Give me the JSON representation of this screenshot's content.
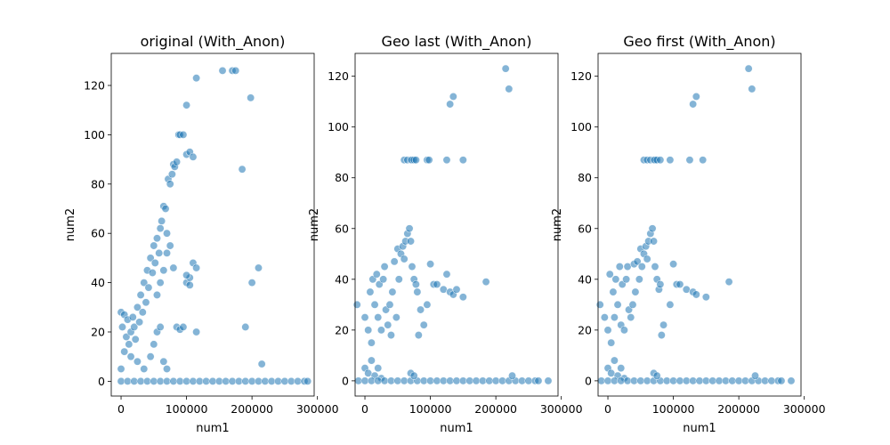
{
  "chart_data": [
    {
      "type": "scatter",
      "title": "original (With_Anon)",
      "xlabel": "num1",
      "ylabel": "num2",
      "xlim": [
        -15000,
        295000
      ],
      "ylim": [
        -6,
        133
      ],
      "xticks": [
        0,
        100000,
        200000,
        300000
      ],
      "xtick_labels": [
        "0",
        "100000",
        "200000",
        "300000"
      ],
      "yticks": [
        0,
        20,
        40,
        60,
        80,
        100,
        120
      ],
      "ytick_labels": [
        "0",
        "20",
        "40",
        "60",
        "80",
        "100",
        "120"
      ],
      "color": "#1f77b4",
      "alpha": 0.55,
      "points": [
        [
          0,
          28
        ],
        [
          2000,
          22
        ],
        [
          5000,
          27
        ],
        [
          8000,
          18
        ],
        [
          10000,
          25
        ],
        [
          12000,
          15
        ],
        [
          15000,
          20
        ],
        [
          18000,
          26
        ],
        [
          20000,
          22
        ],
        [
          22000,
          17
        ],
        [
          25000,
          30
        ],
        [
          28000,
          24
        ],
        [
          30000,
          35
        ],
        [
          33000,
          28
        ],
        [
          35000,
          40
        ],
        [
          38000,
          32
        ],
        [
          40000,
          45
        ],
        [
          42000,
          38
        ],
        [
          45000,
          50
        ],
        [
          48000,
          44
        ],
        [
          50000,
          55
        ],
        [
          52000,
          48
        ],
        [
          55000,
          58
        ],
        [
          58000,
          52
        ],
        [
          60000,
          62
        ],
        [
          62000,
          65
        ],
        [
          65000,
          71
        ],
        [
          68000,
          70
        ],
        [
          70000,
          60
        ],
        [
          72000,
          82
        ],
        [
          75000,
          80
        ],
        [
          78000,
          84
        ],
        [
          80000,
          88
        ],
        [
          82000,
          87
        ],
        [
          85000,
          89
        ],
        [
          88000,
          100
        ],
        [
          90000,
          100
        ],
        [
          95000,
          100
        ],
        [
          100000,
          92
        ],
        [
          100000,
          112
        ],
        [
          105000,
          93
        ],
        [
          110000,
          91
        ],
        [
          115000,
          123
        ],
        [
          155000,
          126
        ],
        [
          170000,
          126
        ],
        [
          175000,
          126
        ],
        [
          185000,
          86
        ],
        [
          198000,
          115
        ],
        [
          55000,
          35
        ],
        [
          60000,
          40
        ],
        [
          65000,
          45
        ],
        [
          70000,
          52
        ],
        [
          75000,
          55
        ],
        [
          80000,
          46
        ],
        [
          85000,
          22
        ],
        [
          90000,
          21
        ],
        [
          95000,
          22
        ],
        [
          100000,
          40
        ],
        [
          105000,
          42
        ],
        [
          110000,
          48
        ],
        [
          115000,
          46
        ],
        [
          100000,
          43
        ],
        [
          105000,
          39
        ],
        [
          115000,
          20
        ],
        [
          190000,
          22
        ],
        [
          200000,
          40
        ],
        [
          210000,
          46
        ],
        [
          215000,
          7
        ],
        [
          45000,
          10
        ],
        [
          50000,
          15
        ],
        [
          55000,
          20
        ],
        [
          60000,
          22
        ],
        [
          65000,
          8
        ],
        [
          70000,
          5
        ],
        [
          35000,
          5
        ],
        [
          25000,
          8
        ],
        [
          15000,
          10
        ],
        [
          5000,
          12
        ],
        [
          0,
          5
        ],
        [
          0,
          0
        ],
        [
          10000,
          0
        ],
        [
          20000,
          0
        ],
        [
          30000,
          0
        ],
        [
          40000,
          0
        ],
        [
          50000,
          0
        ],
        [
          60000,
          0
        ],
        [
          70000,
          0
        ],
        [
          80000,
          0
        ],
        [
          90000,
          0
        ],
        [
          100000,
          0
        ],
        [
          110000,
          0
        ],
        [
          120000,
          0
        ],
        [
          130000,
          0
        ],
        [
          140000,
          0
        ],
        [
          150000,
          0
        ],
        [
          160000,
          0
        ],
        [
          170000,
          0
        ],
        [
          180000,
          0
        ],
        [
          190000,
          0
        ],
        [
          200000,
          0
        ],
        [
          210000,
          0
        ],
        [
          220000,
          0
        ],
        [
          230000,
          0
        ],
        [
          240000,
          0
        ],
        [
          250000,
          0
        ],
        [
          260000,
          0
        ],
        [
          270000,
          0
        ],
        [
          280000,
          0
        ],
        [
          285000,
          0
        ]
      ]
    },
    {
      "type": "scatter",
      "title": "Geo last (With_Anon)",
      "xlabel": "num1",
      "ylabel": "num2",
      "xlim": [
        -15000,
        295000
      ],
      "ylim": [
        -6,
        129
      ],
      "xticks": [
        0,
        100000,
        200000,
        300000
      ],
      "xtick_labels": [
        "0",
        "100000",
        "200000",
        "300000"
      ],
      "yticks": [
        0,
        20,
        40,
        60,
        80,
        100,
        120
      ],
      "ytick_labels": [
        "0",
        "20",
        "40",
        "60",
        "80",
        "100",
        "120"
      ],
      "color": "#1f77b4",
      "alpha": 0.55,
      "points": [
        [
          -12000,
          30
        ],
        [
          0,
          25
        ],
        [
          5000,
          20
        ],
        [
          8000,
          35
        ],
        [
          10000,
          15
        ],
        [
          12000,
          40
        ],
        [
          15000,
          30
        ],
        [
          18000,
          42
        ],
        [
          20000,
          25
        ],
        [
          22000,
          38
        ],
        [
          25000,
          20
        ],
        [
          28000,
          40
        ],
        [
          30000,
          45
        ],
        [
          32000,
          28
        ],
        [
          35000,
          22
        ],
        [
          38000,
          30
        ],
        [
          40000,
          18
        ],
        [
          42000,
          35
        ],
        [
          45000,
          47
        ],
        [
          48000,
          25
        ],
        [
          50000,
          52
        ],
        [
          52000,
          40
        ],
        [
          55000,
          50
        ],
        [
          58000,
          53
        ],
        [
          60000,
          48
        ],
        [
          62000,
          55
        ],
        [
          65000,
          58
        ],
        [
          68000,
          60
        ],
        [
          70000,
          55
        ],
        [
          72000,
          45
        ],
        [
          75000,
          40
        ],
        [
          78000,
          38
        ],
        [
          80000,
          35
        ],
        [
          82000,
          18
        ],
        [
          85000,
          28
        ],
        [
          90000,
          22
        ],
        [
          95000,
          30
        ],
        [
          100000,
          46
        ],
        [
          105000,
          38
        ],
        [
          110000,
          38
        ],
        [
          120000,
          36
        ],
        [
          125000,
          42
        ],
        [
          130000,
          35
        ],
        [
          135000,
          34
        ],
        [
          140000,
          36
        ],
        [
          150000,
          33
        ],
        [
          185000,
          39
        ],
        [
          60000,
          87
        ],
        [
          65000,
          87
        ],
        [
          70000,
          87
        ],
        [
          72000,
          87
        ],
        [
          75000,
          87
        ],
        [
          78000,
          87
        ],
        [
          95000,
          87
        ],
        [
          98000,
          87
        ],
        [
          125000,
          87
        ],
        [
          150000,
          87
        ],
        [
          130000,
          109
        ],
        [
          135000,
          112
        ],
        [
          215000,
          123
        ],
        [
          220000,
          115
        ],
        [
          0,
          5
        ],
        [
          5000,
          3
        ],
        [
          10000,
          8
        ],
        [
          15000,
          2
        ],
        [
          20000,
          5
        ],
        [
          25000,
          1
        ],
        [
          -10000,
          0
        ],
        [
          0,
          0
        ],
        [
          10000,
          0
        ],
        [
          20000,
          0
        ],
        [
          30000,
          0
        ],
        [
          40000,
          0
        ],
        [
          50000,
          0
        ],
        [
          60000,
          0
        ],
        [
          70000,
          0
        ],
        [
          80000,
          0
        ],
        [
          90000,
          0
        ],
        [
          100000,
          0
        ],
        [
          110000,
          0
        ],
        [
          120000,
          0
        ],
        [
          130000,
          0
        ],
        [
          140000,
          0
        ],
        [
          150000,
          0
        ],
        [
          160000,
          0
        ],
        [
          170000,
          0
        ],
        [
          180000,
          0
        ],
        [
          190000,
          0
        ],
        [
          200000,
          0
        ],
        [
          210000,
          0
        ],
        [
          220000,
          0
        ],
        [
          230000,
          0
        ],
        [
          240000,
          0
        ],
        [
          250000,
          0
        ],
        [
          260000,
          0
        ],
        [
          265000,
          0
        ],
        [
          280000,
          0
        ],
        [
          70000,
          3
        ],
        [
          75000,
          2
        ],
        [
          225000,
          2
        ]
      ]
    },
    {
      "type": "scatter",
      "title": "Geo first (With_Anon)",
      "xlabel": "num1",
      "ylabel": "num2",
      "xlim": [
        -15000,
        295000
      ],
      "ylim": [
        -6,
        129
      ],
      "xticks": [
        0,
        100000,
        200000,
        300000
      ],
      "xtick_labels": [
        "0",
        "100000",
        "200000",
        "300000"
      ],
      "yticks": [
        0,
        20,
        40,
        60,
        80,
        100,
        120
      ],
      "ytick_labels": [
        "0",
        "20",
        "40",
        "60",
        "80",
        "100",
        "120"
      ],
      "color": "#1f77b4",
      "alpha": 0.55,
      "points": [
        [
          -12000,
          30
        ],
        [
          -5000,
          25
        ],
        [
          0,
          20
        ],
        [
          3000,
          42
        ],
        [
          5000,
          15
        ],
        [
          8000,
          35
        ],
        [
          10000,
          25
        ],
        [
          12000,
          40
        ],
        [
          15000,
          30
        ],
        [
          18000,
          45
        ],
        [
          20000,
          22
        ],
        [
          22000,
          38
        ],
        [
          25000,
          20
        ],
        [
          28000,
          40
        ],
        [
          30000,
          45
        ],
        [
          32000,
          28
        ],
        [
          35000,
          25
        ],
        [
          38000,
          30
        ],
        [
          40000,
          46
        ],
        [
          42000,
          35
        ],
        [
          45000,
          47
        ],
        [
          48000,
          40
        ],
        [
          50000,
          52
        ],
        [
          52000,
          45
        ],
        [
          55000,
          50
        ],
        [
          58000,
          53
        ],
        [
          60000,
          48
        ],
        [
          62000,
          55
        ],
        [
          65000,
          58
        ],
        [
          68000,
          60
        ],
        [
          70000,
          55
        ],
        [
          72000,
          45
        ],
        [
          75000,
          40
        ],
        [
          78000,
          36
        ],
        [
          80000,
          38
        ],
        [
          82000,
          18
        ],
        [
          85000,
          22
        ],
        [
          95000,
          30
        ],
        [
          100000,
          46
        ],
        [
          105000,
          38
        ],
        [
          110000,
          38
        ],
        [
          120000,
          36
        ],
        [
          130000,
          35
        ],
        [
          135000,
          34
        ],
        [
          150000,
          33
        ],
        [
          185000,
          39
        ],
        [
          55000,
          87
        ],
        [
          60000,
          87
        ],
        [
          65000,
          87
        ],
        [
          70000,
          87
        ],
        [
          72000,
          87
        ],
        [
          75000,
          87
        ],
        [
          80000,
          87
        ],
        [
          95000,
          87
        ],
        [
          125000,
          87
        ],
        [
          145000,
          87
        ],
        [
          130000,
          109
        ],
        [
          135000,
          112
        ],
        [
          215000,
          123
        ],
        [
          220000,
          115
        ],
        [
          0,
          5
        ],
        [
          5000,
          3
        ],
        [
          10000,
          8
        ],
        [
          15000,
          2
        ],
        [
          20000,
          5
        ],
        [
          25000,
          1
        ],
        [
          -10000,
          0
        ],
        [
          0,
          0
        ],
        [
          10000,
          0
        ],
        [
          20000,
          0
        ],
        [
          30000,
          0
        ],
        [
          40000,
          0
        ],
        [
          50000,
          0
        ],
        [
          60000,
          0
        ],
        [
          70000,
          0
        ],
        [
          80000,
          0
        ],
        [
          90000,
          0
        ],
        [
          100000,
          0
        ],
        [
          110000,
          0
        ],
        [
          120000,
          0
        ],
        [
          130000,
          0
        ],
        [
          140000,
          0
        ],
        [
          150000,
          0
        ],
        [
          160000,
          0
        ],
        [
          170000,
          0
        ],
        [
          180000,
          0
        ],
        [
          190000,
          0
        ],
        [
          200000,
          0
        ],
        [
          210000,
          0
        ],
        [
          220000,
          0
        ],
        [
          230000,
          0
        ],
        [
          240000,
          0
        ],
        [
          250000,
          0
        ],
        [
          260000,
          0
        ],
        [
          265000,
          0
        ],
        [
          280000,
          0
        ],
        [
          70000,
          3
        ],
        [
          75000,
          2
        ],
        [
          225000,
          2
        ]
      ]
    }
  ]
}
